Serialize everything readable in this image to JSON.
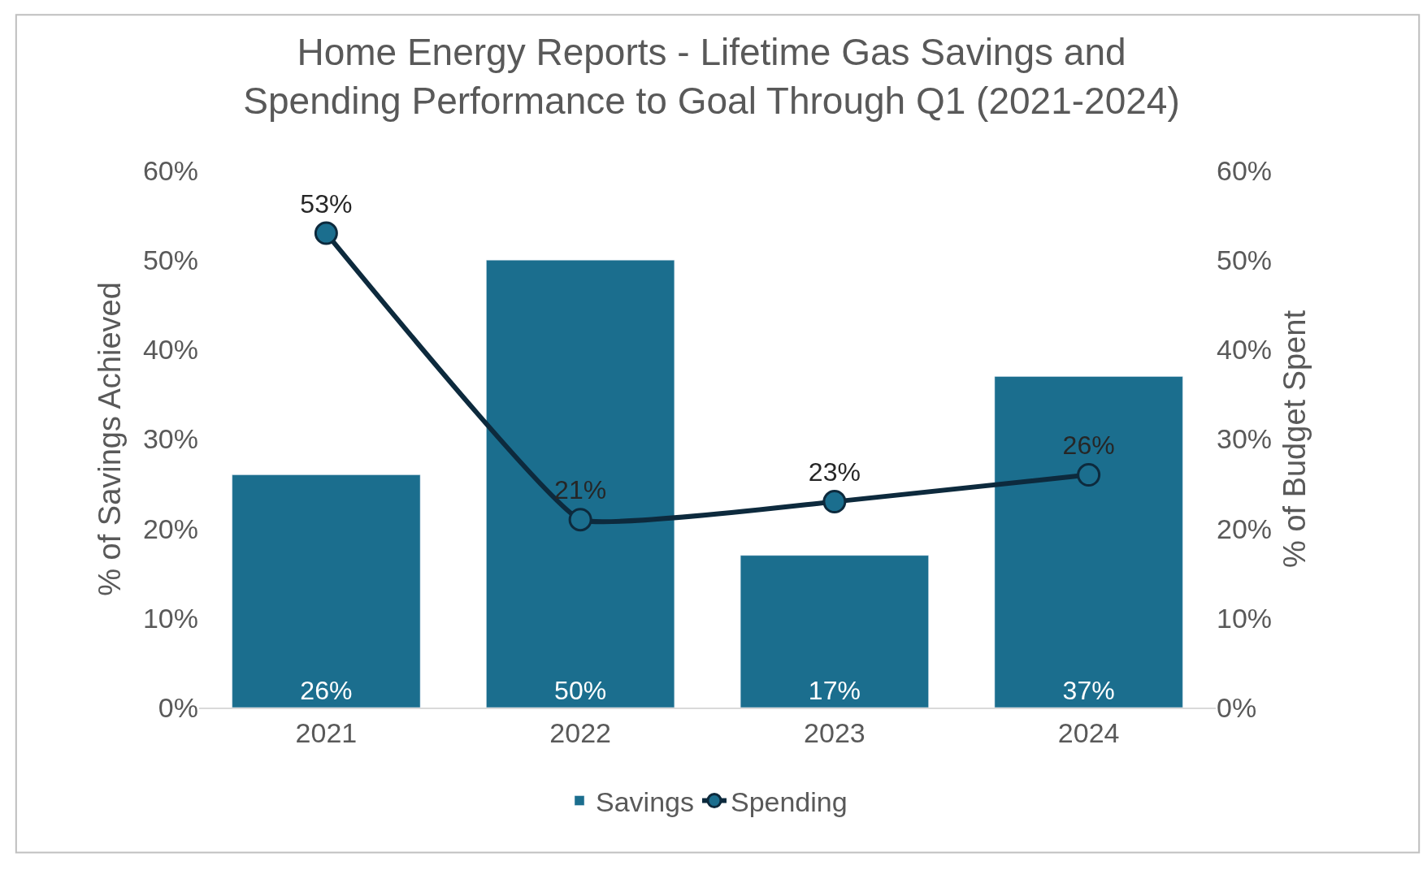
{
  "chart_data": {
    "type": "bar",
    "title": "Home Energy Reports - Lifetime Gas Savings and\nSpending Performance to Goal Through Q1 (2021-2024)",
    "ylabel": "% of Savings Achieved",
    "y2label": "% of Budget Spent",
    "categories": [
      "2021",
      "2022",
      "2023",
      "2024"
    ],
    "series": [
      {
        "name": "Savings",
        "color": "#1b6e8e",
        "values": [
          26,
          50,
          17,
          37
        ],
        "value_labels": [
          "26%",
          "50%",
          "17%",
          "37%"
        ]
      },
      {
        "name": "Spending",
        "type": "line",
        "axis": "y2",
        "color": "#0d2a3d",
        "marker": "circle",
        "values": [
          53,
          21,
          23,
          26
        ],
        "value_labels": [
          "53%",
          "21%",
          "23%",
          "26%"
        ]
      }
    ],
    "ylim": [
      0,
      60
    ],
    "yticks": [
      {
        "value": 0,
        "label": "0%"
      },
      {
        "value": 10,
        "label": "10%"
      },
      {
        "value": 20,
        "label": "20%"
      },
      {
        "value": 30,
        "label": "30%"
      },
      {
        "value": 40,
        "label": "40%"
      },
      {
        "value": 50,
        "label": "50%"
      },
      {
        "value": 60,
        "label": "60%"
      }
    ],
    "y2lim": [
      0,
      60
    ],
    "y2ticks": [
      {
        "value": 0,
        "label": "0%"
      },
      {
        "value": 10,
        "label": "10%"
      },
      {
        "value": 20,
        "label": "20%"
      },
      {
        "value": 30,
        "label": "30%"
      },
      {
        "value": 40,
        "label": "40%"
      },
      {
        "value": 50,
        "label": "50%"
      },
      {
        "value": 60,
        "label": "60%"
      }
    ],
    "grid": false,
    "legend": "bottom"
  }
}
